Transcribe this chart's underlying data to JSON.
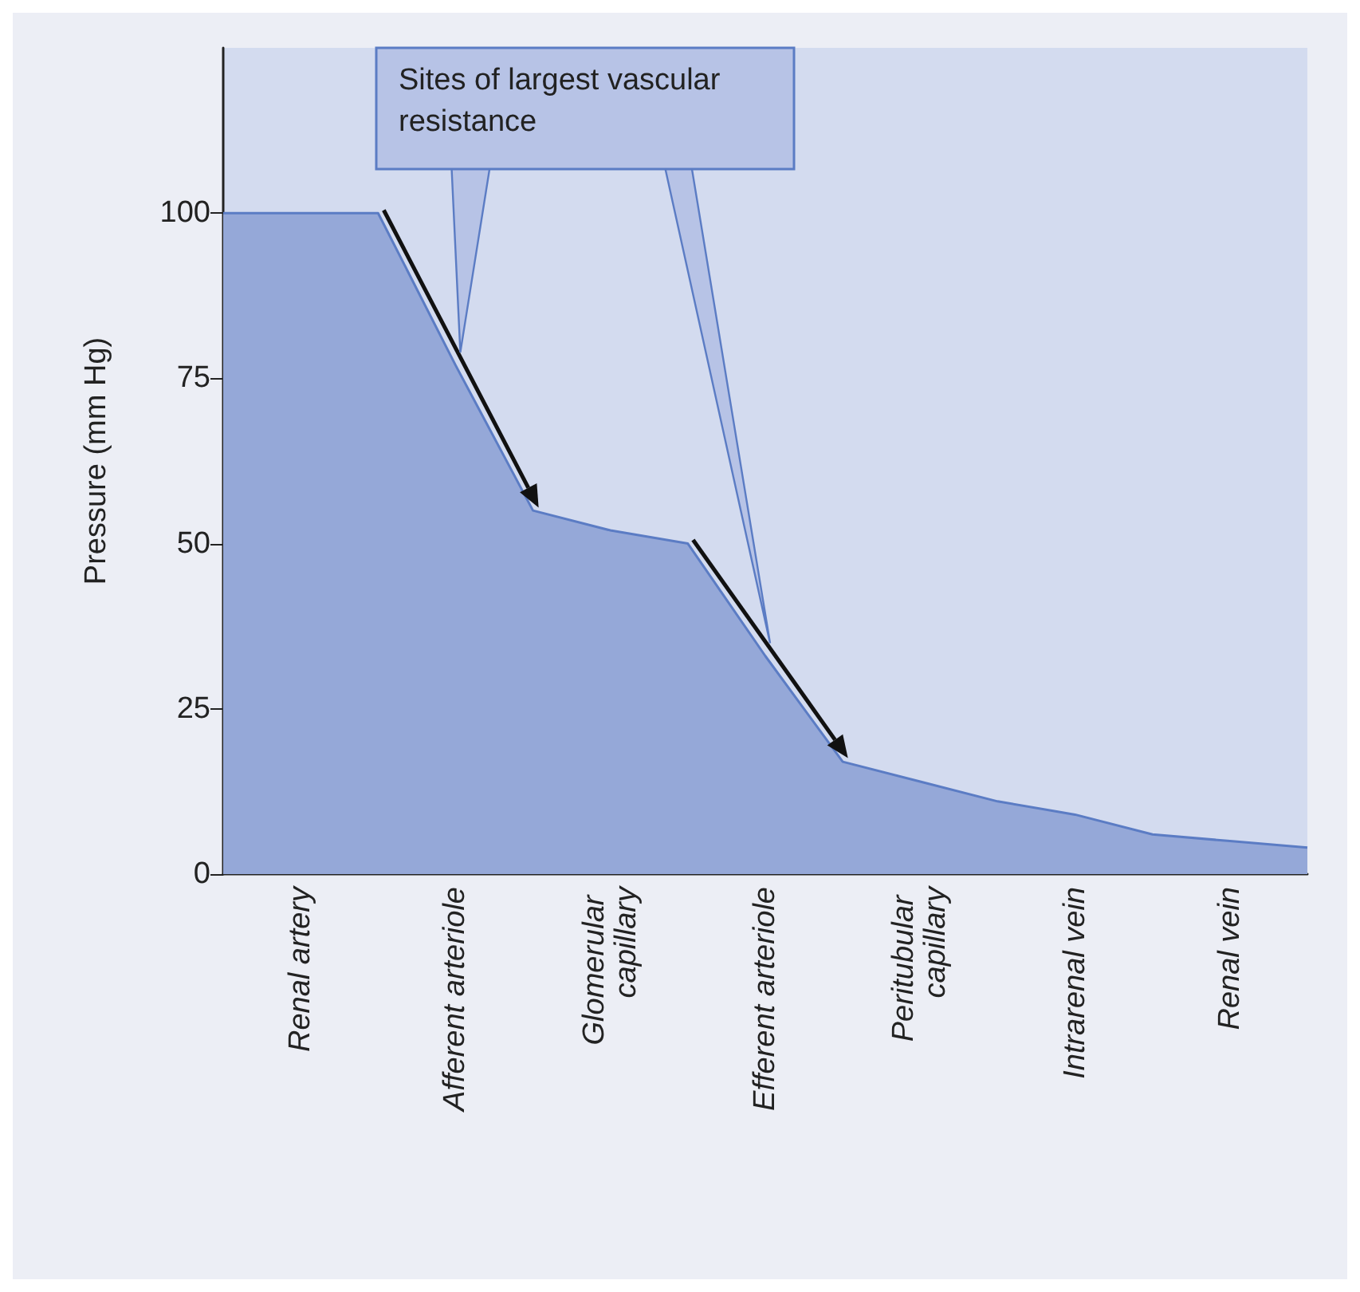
{
  "chart_data": {
    "type": "area",
    "ylabel": "Pressure (mm Hg)",
    "categories": [
      null,
      "Renal artery",
      null,
      "Afferent arteriole",
      null,
      "Glomerular capillary",
      null,
      "Efferent arteriole",
      null,
      "Peritubular capillary",
      null,
      "Intrarenal vein",
      null,
      "Renal vein",
      null
    ],
    "series": [
      {
        "color": "#5b7cc4",
        "values": [
          100,
          100,
          100,
          77,
          55,
          52,
          50,
          33,
          17,
          14,
          11,
          9,
          6,
          5,
          4
        ]
      }
    ],
    "ylim": [
      0,
      125
    ],
    "yticks": [
      0,
      25,
      50,
      75,
      100
    ],
    "grid": false,
    "marker": "none",
    "annotations": [
      "Sites of largest vascular resistance"
    ]
  }
}
